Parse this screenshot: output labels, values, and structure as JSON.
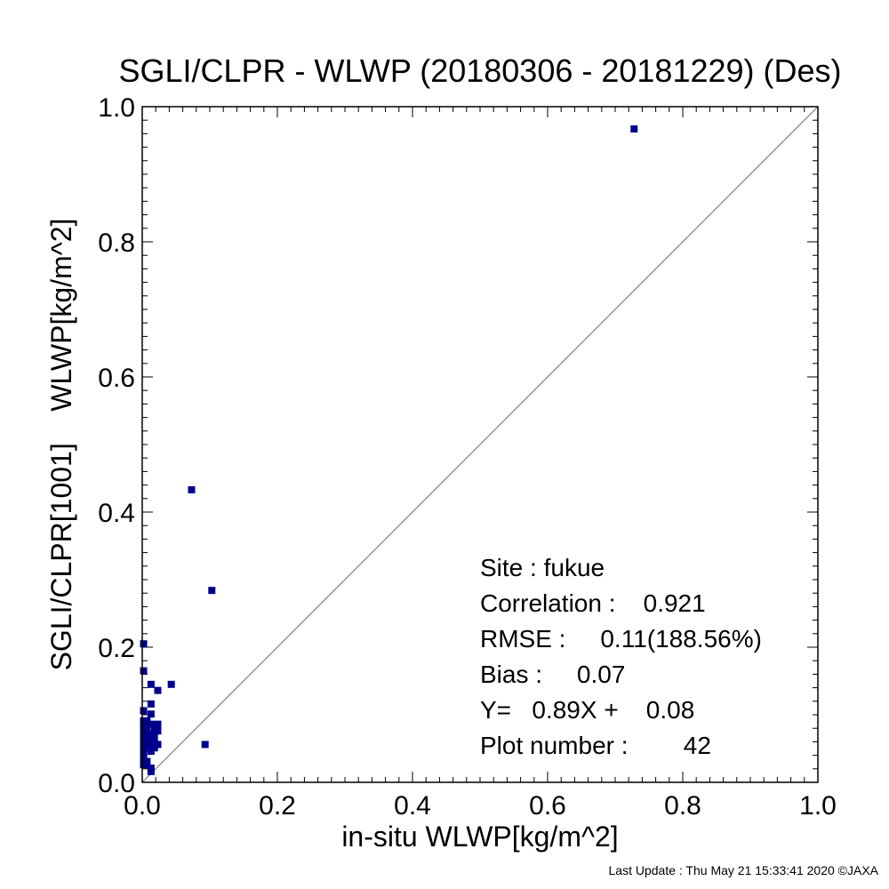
{
  "chart_data": {
    "type": "scatter",
    "title": "SGLI/CLPR - WLWP (20180306 - 20181229) (Des)",
    "xlabel": "in-situ WLWP[kg/m^2]",
    "ylabel": "SGLI/CLPR[1001]    WLWP[kg/m^2]",
    "xlim": [
      0,
      1
    ],
    "ylim": [
      0,
      1
    ],
    "x_ticks": [
      "0.0",
      "0.2",
      "0.4",
      "0.6",
      "0.8",
      "1.0"
    ],
    "y_ticks": [
      "0.0",
      "0.2",
      "0.4",
      "0.6",
      "0.8",
      "1.0"
    ],
    "reference_line": "y = x",
    "point_color": "#00008B",
    "line_color": "#808080",
    "points": [
      {
        "x": 0.728,
        "y": 0.967
      },
      {
        "x": 0.073,
        "y": 0.433
      },
      {
        "x": 0.103,
        "y": 0.284
      },
      {
        "x": 0.002,
        "y": 0.205
      },
      {
        "x": 0.002,
        "y": 0.165
      },
      {
        "x": 0.013,
        "y": 0.145
      },
      {
        "x": 0.043,
        "y": 0.145
      },
      {
        "x": 0.023,
        "y": 0.136
      },
      {
        "x": 0.013,
        "y": 0.116
      },
      {
        "x": 0.002,
        "y": 0.106
      },
      {
        "x": 0.013,
        "y": 0.101
      },
      {
        "x": 0.007,
        "y": 0.091
      },
      {
        "x": 0.002,
        "y": 0.086
      },
      {
        "x": 0.013,
        "y": 0.086
      },
      {
        "x": 0.023,
        "y": 0.086
      },
      {
        "x": 0.007,
        "y": 0.081
      },
      {
        "x": 0.002,
        "y": 0.076
      },
      {
        "x": 0.018,
        "y": 0.076
      },
      {
        "x": 0.023,
        "y": 0.076
      },
      {
        "x": 0.007,
        "y": 0.071
      },
      {
        "x": 0.013,
        "y": 0.071
      },
      {
        "x": 0.002,
        "y": 0.066
      },
      {
        "x": 0.018,
        "y": 0.066
      },
      {
        "x": 0.007,
        "y": 0.061
      },
      {
        "x": 0.013,
        "y": 0.061
      },
      {
        "x": 0.002,
        "y": 0.056
      },
      {
        "x": 0.018,
        "y": 0.056
      },
      {
        "x": 0.023,
        "y": 0.056
      },
      {
        "x": 0.093,
        "y": 0.056
      },
      {
        "x": 0.007,
        "y": 0.051
      },
      {
        "x": 0.013,
        "y": 0.051
      },
      {
        "x": 0.002,
        "y": 0.046
      },
      {
        "x": 0.013,
        "y": 0.046
      },
      {
        "x": 0.002,
        "y": 0.036
      },
      {
        "x": 0.002,
        "y": 0.031
      },
      {
        "x": 0.007,
        "y": 0.026
      },
      {
        "x": 0.002,
        "y": 0.026
      },
      {
        "x": 0.013,
        "y": 0.021
      },
      {
        "x": 0.013,
        "y": 0.016
      },
      {
        "x": 0.007,
        "y": 0.031
      },
      {
        "x": 0.018,
        "y": 0.051
      },
      {
        "x": 0.002,
        "y": 0.091
      }
    ],
    "stats": {
      "site": "Site : fukue",
      "correlation": "Correlation :    0.921",
      "rmse": "RMSE :     0.11(188.56%)",
      "bias": "Bias :     0.07",
      "regression": "Y=   0.89X +    0.08",
      "plot_number": "Plot number :        42"
    }
  },
  "footer": {
    "last_update": "Last Update : Thu May 21 15:33:41 2020  ©JAXA"
  }
}
